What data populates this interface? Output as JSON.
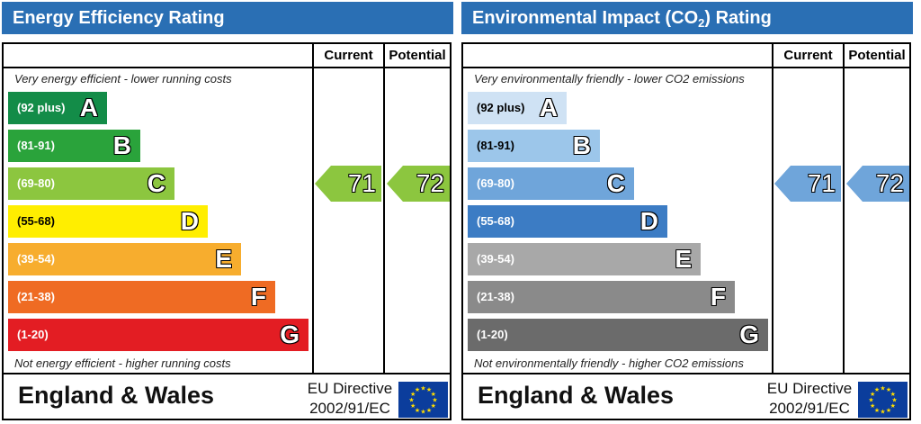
{
  "chart_data": [
    {
      "type": "bar",
      "title": "Energy Efficiency Rating",
      "columns": [
        "Current",
        "Potential"
      ],
      "top_note": "Very energy efficient - lower running costs",
      "bottom_note": "Not energy efficient - higher running costs",
      "bands": [
        {
          "range": "(92 plus)",
          "letter": "A",
          "color": "#138c48"
        },
        {
          "range": "(81-91)",
          "letter": "B",
          "color": "#2aa33b"
        },
        {
          "range": "(69-80)",
          "letter": "C",
          "color": "#8cc63f"
        },
        {
          "range": "(55-68)",
          "letter": "D",
          "color": "#ffee00"
        },
        {
          "range": "(39-54)",
          "letter": "E",
          "color": "#f7ad2e"
        },
        {
          "range": "(21-38)",
          "letter": "F",
          "color": "#ef6b23"
        },
        {
          "range": "(1-20)",
          "letter": "G",
          "color": "#e31d23"
        }
      ],
      "current": {
        "value": 71,
        "band": "C",
        "color": "#8cc63f"
      },
      "potential": {
        "value": 72,
        "band": "C",
        "color": "#8cc63f"
      },
      "footer": {
        "region": "England & Wales",
        "directive_line1": "EU Directive",
        "directive_line2": "2002/91/EC"
      }
    },
    {
      "type": "bar",
      "title_main": "Environmental Impact (CO",
      "title_sub": "2",
      "title_end": ") Rating",
      "columns": [
        "Current",
        "Potential"
      ],
      "top_note": "Very environmentally friendly - lower CO2 emissions",
      "bottom_note": "Not environmentally friendly - higher CO2 emissions",
      "bands": [
        {
          "range": "(92 plus)",
          "letter": "A",
          "color": "#cfe2f4"
        },
        {
          "range": "(81-91)",
          "letter": "B",
          "color": "#9cc6ea"
        },
        {
          "range": "(69-80)",
          "letter": "C",
          "color": "#6fa5da"
        },
        {
          "range": "(55-68)",
          "letter": "D",
          "color": "#3c7cc4"
        },
        {
          "range": "(39-54)",
          "letter": "E",
          "color": "#a8a8a8"
        },
        {
          "range": "(21-38)",
          "letter": "F",
          "color": "#8a8a8a"
        },
        {
          "range": "(1-20)",
          "letter": "G",
          "color": "#6b6b6b"
        }
      ],
      "current": {
        "value": 71,
        "band": "C",
        "color": "#6fa5da"
      },
      "potential": {
        "value": 72,
        "band": "C",
        "color": "#6fa5da"
      },
      "footer": {
        "region": "England & Wales",
        "directive_line1": "EU Directive",
        "directive_line2": "2002/91/EC"
      }
    }
  ],
  "eu_flag": {
    "icon": "eu-flag-icon",
    "background": "#0b3d9c",
    "star_color": "#ffdd00"
  }
}
